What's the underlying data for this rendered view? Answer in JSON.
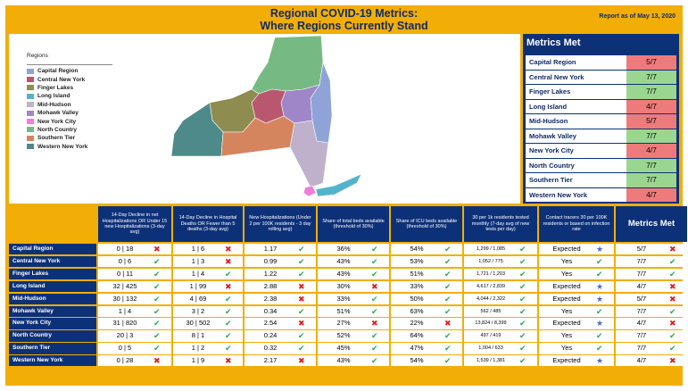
{
  "header": {
    "title_line1": "Regional COVID-19 Metrics:",
    "title_line2": "Where Regions Currently Stand",
    "report_date": "Report as of May 13, 2020"
  },
  "legend": {
    "title": "Regions",
    "items": [
      {
        "label": "Capital Region",
        "color": "#8fa3d8"
      },
      {
        "label": "Central New York",
        "color": "#b9576f"
      },
      {
        "label": "Finger Lakes",
        "color": "#8e8c4f"
      },
      {
        "label": "Long Island",
        "color": "#52b4cc"
      },
      {
        "label": "Mid-Hudson",
        "color": "#bfb1cc"
      },
      {
        "label": "Mohawk Valley",
        "color": "#9e86c8"
      },
      {
        "label": "New York City",
        "color": "#ec7fd8"
      },
      {
        "label": "North Country",
        "color": "#77b983"
      },
      {
        "label": "Southern Tier",
        "color": "#d4855e"
      },
      {
        "label": "Western New York",
        "color": "#4f8a8b"
      }
    ]
  },
  "metrics_met": {
    "title": "Metrics Met",
    "rows": [
      {
        "region": "Capital Region",
        "score": "5/7",
        "color": "#ee7b7b"
      },
      {
        "region": "Central New York",
        "score": "7/7",
        "color": "#9ad690"
      },
      {
        "region": "Finger Lakes",
        "score": "7/7",
        "color": "#9ad690"
      },
      {
        "region": "Long Island",
        "score": "4/7",
        "color": "#ee7b7b"
      },
      {
        "region": "Mid-Hudson",
        "score": "5/7",
        "color": "#ee7b7b"
      },
      {
        "region": "Mohawk Valley",
        "score": "7/7",
        "color": "#9ad690"
      },
      {
        "region": "New York City",
        "score": "4/7",
        "color": "#ee7b7b"
      },
      {
        "region": "North Country",
        "score": "7/7",
        "color": "#9ad690"
      },
      {
        "region": "Southern Tier",
        "score": "7/7",
        "color": "#9ad690"
      },
      {
        "region": "Western New York",
        "score": "4/7",
        "color": "#ee7b7b"
      }
    ]
  },
  "table": {
    "headers": [
      "14-Day Decline in net Hospitalizations OR Under 15 new Hospitalizations (3-day avg)",
      "14-Day Decline in Hospital Deaths OR Fewer than 5 deaths (3-day avg)",
      "New Hospitalizations (Under 2 per 100K residents - 3 day rolling avg)",
      "Share of total beds available (threshold of 30%)",
      "Share of ICU beds available (threshold of 30%)",
      "30 per 1k residents tested monthly (7-day avg of new tests per day)",
      "Contact tracers 30 per 100K residents or based on infection rate",
      "Metrics Met"
    ],
    "rows": [
      {
        "region": "Capital Region",
        "c": [
          [
            "0 | 18",
            "x"
          ],
          [
            "1 | 6",
            "x"
          ],
          [
            "1.17",
            "v"
          ],
          [
            "36%",
            "v"
          ],
          [
            "54%",
            "v"
          ],
          [
            "1,299 / 1,085",
            "v"
          ],
          [
            "Expected",
            "s"
          ],
          [
            "5/7",
            "x"
          ]
        ]
      },
      {
        "region": "Central New York",
        "c": [
          [
            "0 | 6",
            "v"
          ],
          [
            "1 | 3",
            "x"
          ],
          [
            "0.99",
            "v"
          ],
          [
            "43%",
            "v"
          ],
          [
            "53%",
            "v"
          ],
          [
            "1,052 / 775",
            "v"
          ],
          [
            "Yes",
            "v"
          ],
          [
            "7/7",
            "v"
          ]
        ]
      },
      {
        "region": "Finger Lakes",
        "c": [
          [
            "0 | 11",
            "v"
          ],
          [
            "1 | 4",
            "v"
          ],
          [
            "1.22",
            "v"
          ],
          [
            "43%",
            "v"
          ],
          [
            "51%",
            "v"
          ],
          [
            "1,721 / 1,203",
            "v"
          ],
          [
            "Yes",
            "v"
          ],
          [
            "7/7",
            "v"
          ]
        ]
      },
      {
        "region": "Long Island",
        "c": [
          [
            "32 | 425",
            "v"
          ],
          [
            "1 | 99",
            "x"
          ],
          [
            "2.88",
            "x"
          ],
          [
            "30%",
            "x"
          ],
          [
            "33%",
            "v"
          ],
          [
            "4,617 / 2,839",
            "v"
          ],
          [
            "Expected",
            "s"
          ],
          [
            "4/7",
            "x"
          ]
        ]
      },
      {
        "region": "Mid-Hudson",
        "c": [
          [
            "30 | 132",
            "v"
          ],
          [
            "4 | 69",
            "v"
          ],
          [
            "2.38",
            "x"
          ],
          [
            "33%",
            "v"
          ],
          [
            "50%",
            "v"
          ],
          [
            "4,044 / 2,322",
            "v"
          ],
          [
            "Expected",
            "s"
          ],
          [
            "5/7",
            "x"
          ]
        ]
      },
      {
        "region": "Mohawk Valley",
        "c": [
          [
            "1 | 4",
            "v"
          ],
          [
            "3 | 2",
            "v"
          ],
          [
            "0.34",
            "v"
          ],
          [
            "51%",
            "v"
          ],
          [
            "63%",
            "v"
          ],
          [
            "562 / 485",
            "v"
          ],
          [
            "Yes",
            "v"
          ],
          [
            "7/7",
            "v"
          ]
        ]
      },
      {
        "region": "New York City",
        "c": [
          [
            "31 | 820",
            "v"
          ],
          [
            "30 | 502",
            "v"
          ],
          [
            "2.54",
            "x"
          ],
          [
            "27%",
            "x"
          ],
          [
            "22%",
            "x"
          ],
          [
            "13,824 / 8,399",
            "v"
          ],
          [
            "Expected",
            "s"
          ],
          [
            "4/7",
            "x"
          ]
        ]
      },
      {
        "region": "North Country",
        "c": [
          [
            "20 | 3",
            "v"
          ],
          [
            "8 | 1",
            "v"
          ],
          [
            "0.24",
            "v"
          ],
          [
            "52%",
            "v"
          ],
          [
            "64%",
            "v"
          ],
          [
            "497 / 419",
            "v"
          ],
          [
            "Yes",
            "v"
          ],
          [
            "7/7",
            "v"
          ]
        ]
      },
      {
        "region": "Southern Tier",
        "c": [
          [
            "0 | 5",
            "v"
          ],
          [
            "1 | 2",
            "v"
          ],
          [
            "0.32",
            "v"
          ],
          [
            "45%",
            "v"
          ],
          [
            "47%",
            "v"
          ],
          [
            "1,004 / 633",
            "v"
          ],
          [
            "Yes",
            "v"
          ],
          [
            "7/7",
            "v"
          ]
        ]
      },
      {
        "region": "Western New York",
        "c": [
          [
            "0 | 28",
            "x"
          ],
          [
            "1 | 9",
            "x"
          ],
          [
            "2.17",
            "x"
          ],
          [
            "43%",
            "v"
          ],
          [
            "54%",
            "v"
          ],
          [
            "1,539 / 1,381",
            "v"
          ],
          [
            "Expected",
            "s"
          ],
          [
            "4/7",
            "x"
          ]
        ]
      }
    ]
  }
}
